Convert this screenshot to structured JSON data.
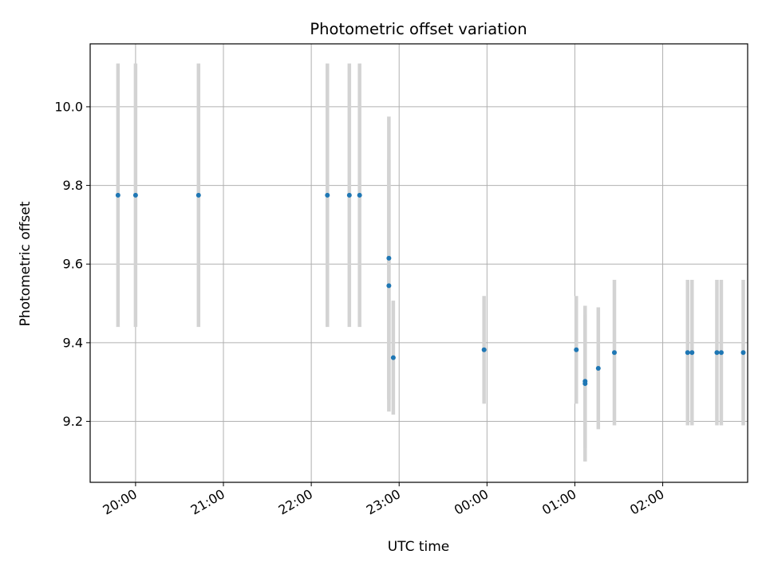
{
  "chart_data": {
    "type": "scatter",
    "title": "Photometric offset variation",
    "xlabel": "UTC time",
    "ylabel": "Photometric offset",
    "x_tick_labels": [
      "20:00",
      "21:00",
      "22:00",
      "23:00",
      "00:00",
      "01:00",
      "02:00"
    ],
    "y_tick_labels": [
      "9.2",
      "9.4",
      "9.6",
      "9.8",
      "10.0"
    ],
    "y_ticks": [
      9.2,
      9.4,
      9.6,
      9.8,
      10.0
    ],
    "xlim": [
      "19:29",
      "02:58"
    ],
    "ylim": [
      9.045,
      10.16
    ],
    "grid": true,
    "colors": {
      "point": "#1f77b4",
      "errorbar": "#d3d3d3",
      "grid": "#b0b0b0"
    },
    "series": [
      {
        "points": [
          {
            "x": "19:48",
            "y": 9.775,
            "err": 0.335
          },
          {
            "x": "20:00",
            "y": 9.775,
            "err": 0.335
          },
          {
            "x": "20:43",
            "y": 9.775,
            "err": 0.335
          },
          {
            "x": "22:11",
            "y": 9.775,
            "err": 0.335
          },
          {
            "x": "22:26",
            "y": 9.775,
            "err": 0.335
          },
          {
            "x": "22:33",
            "y": 9.775,
            "err": 0.335
          },
          {
            "x": "22:53",
            "y": 9.615,
            "err": 0.36
          },
          {
            "x": "22:53",
            "y": 9.545,
            "err": 0.32
          },
          {
            "x": "22:56",
            "y": 9.362,
            "err": 0.145
          },
          {
            "x": "23:58",
            "y": 9.382,
            "err": 0.137
          },
          {
            "x": "01:01",
            "y": 9.382,
            "err": 0.137
          },
          {
            "x": "01:07",
            "y": 9.302,
            "err": 0.17
          },
          {
            "x": "01:07",
            "y": 9.296,
            "err": 0.198
          },
          {
            "x": "01:16",
            "y": 9.335,
            "err": 0.155
          },
          {
            "x": "01:27",
            "y": 9.375,
            "err": 0.185
          },
          {
            "x": "02:17",
            "y": 9.375,
            "err": 0.185
          },
          {
            "x": "02:20",
            "y": 9.375,
            "err": 0.185
          },
          {
            "x": "02:37",
            "y": 9.375,
            "err": 0.185
          },
          {
            "x": "02:40",
            "y": 9.375,
            "err": 0.185
          },
          {
            "x": "02:55",
            "y": 9.375,
            "err": 0.185
          }
        ]
      }
    ]
  }
}
